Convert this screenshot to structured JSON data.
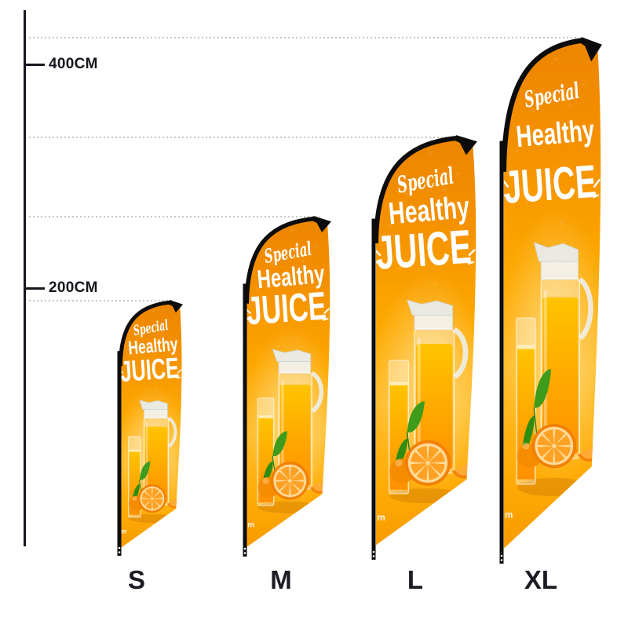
{
  "scale": {
    "ticks": [
      {
        "label": "400CM"
      },
      {
        "label": "200CM"
      }
    ]
  },
  "sizes": [
    {
      "id": "s",
      "label": "S"
    },
    {
      "id": "m",
      "label": "M"
    },
    {
      "id": "l",
      "label": "L"
    },
    {
      "id": "xl",
      "label": "XL"
    }
  ],
  "flag_artwork": {
    "script_word": "Special",
    "word2": "Healthy",
    "word3": "JUICE",
    "watermark": "m"
  },
  "colors": {
    "page_background": "#ffffff",
    "axis_dark": "#17171f",
    "guide_gray": "#c6c6c6",
    "label_dark": "#1b1b24",
    "pole_black": "#0c0c0c",
    "flag_orange_dark": "#ed8500",
    "flag_orange": "#f89d00",
    "flag_orange_light": "#ffc93f",
    "juice_yellow": "#ffc400",
    "leaf_green": "#3e9b1c",
    "flag_text_white": "#ffffff"
  }
}
